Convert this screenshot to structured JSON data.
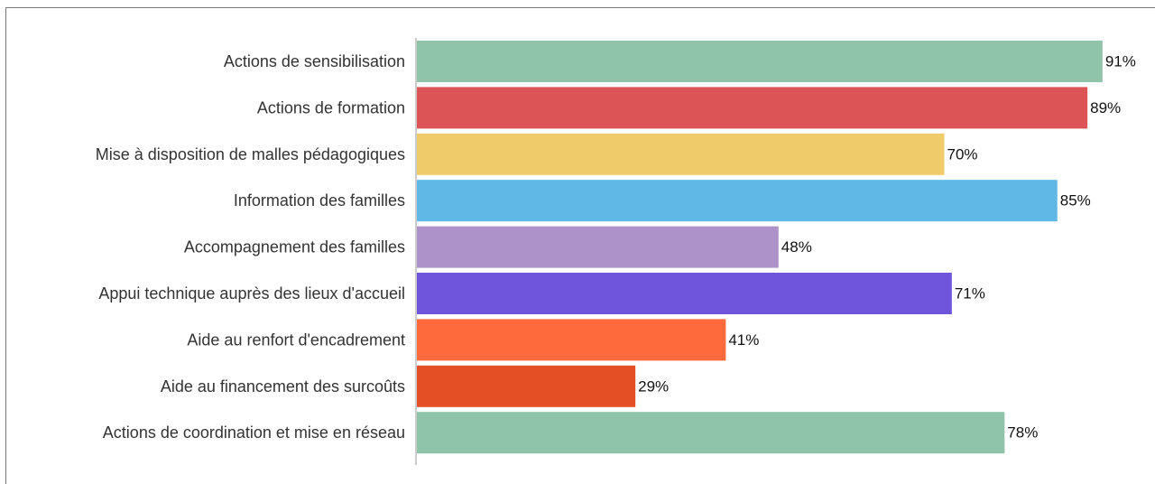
{
  "chart_data": {
    "type": "bar",
    "orientation": "horizontal",
    "categories": [
      "Actions de sensibilisation",
      "Actions de formation",
      "Mise à disposition de malles pédagogiques",
      "Information des familles",
      "Accompagnement des familles",
      "Appui technique auprès des lieux d'accueil",
      "Aide au renfort d'encadrement",
      "Aide au financement des surcoûts",
      "Actions de coordination et mise en réseau"
    ],
    "values": [
      91,
      89,
      70,
      85,
      48,
      71,
      41,
      29,
      78
    ],
    "value_labels": [
      "91%",
      "89%",
      "70%",
      "85%",
      "48%",
      "71%",
      "41%",
      "29%",
      "78%"
    ],
    "colors": [
      "#8fc4a8",
      "#dc5456",
      "#efcb6a",
      "#5fb8e6",
      "#ac92c9",
      "#6f55dc",
      "#ff6a3d",
      "#e44f25",
      "#8fc4a8"
    ],
    "xlim": [
      0,
      100
    ],
    "title": "",
    "xlabel": "",
    "ylabel": "",
    "grid": false,
    "legend": false
  }
}
